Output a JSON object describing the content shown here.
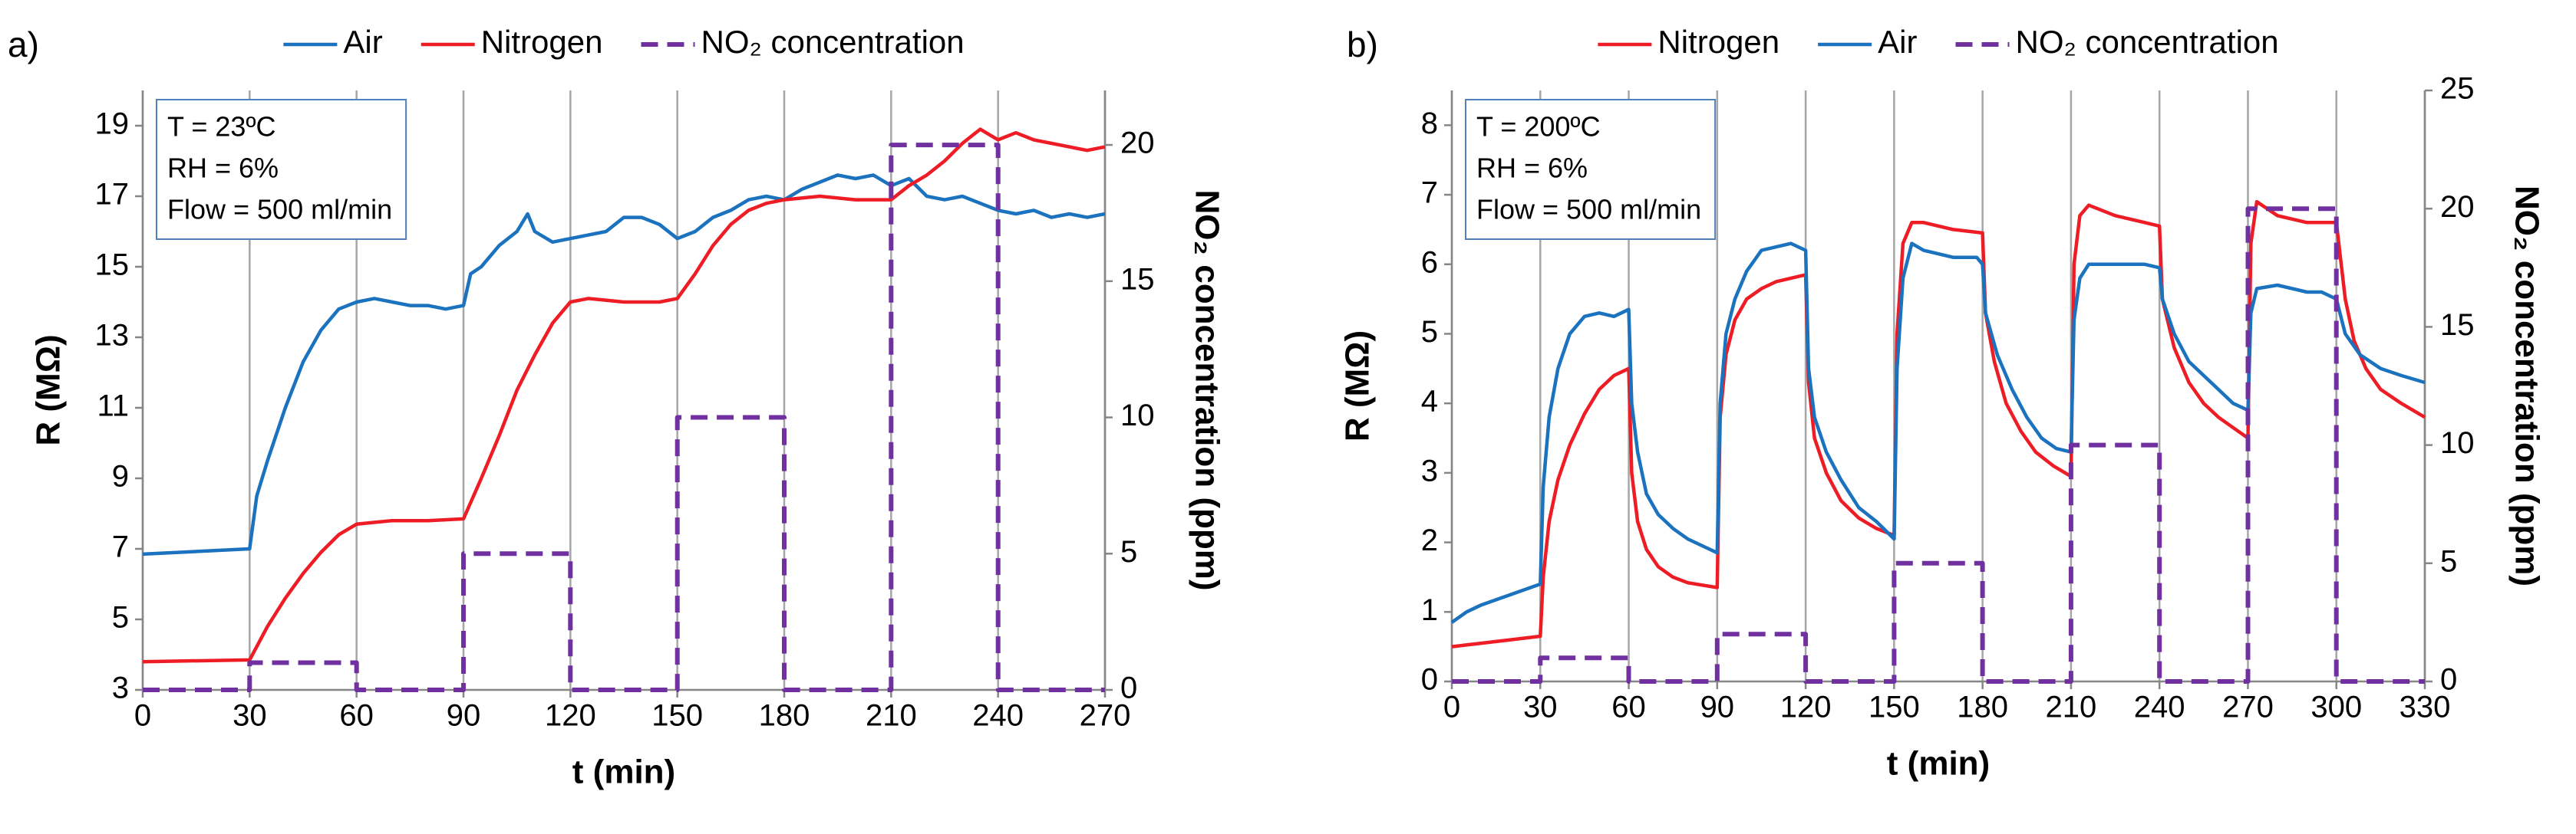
{
  "chart_data": [
    {
      "type": "line",
      "panel_label": "a)",
      "xlabel": "t (min)",
      "ylabel": "R (MΩ)",
      "y2label": "NO₂ concentration (ppm)",
      "annotation": [
        "T = 23ºC",
        "RH = 6%",
        "Flow = 500 ml/min"
      ],
      "xlim": [
        0,
        270
      ],
      "xticks": [
        0,
        30,
        60,
        90,
        120,
        150,
        180,
        210,
        240,
        270
      ],
      "ylim": [
        3,
        20
      ],
      "yticks": [
        3,
        5,
        7,
        9,
        11,
        13,
        15,
        17,
        19
      ],
      "y2lim": [
        0,
        22
      ],
      "y2ticks": [
        0,
        5,
        10,
        15,
        20
      ],
      "grid": "x",
      "series": [
        {
          "name": "Air",
          "color": "#1b72be",
          "x": [
            0,
            30,
            32,
            35,
            40,
            45,
            50,
            55,
            60,
            65,
            70,
            75,
            80,
            85,
            90,
            92,
            95,
            100,
            105,
            108,
            110,
            115,
            120,
            125,
            130,
            135,
            140,
            145,
            150,
            155,
            160,
            165,
            170,
            175,
            180,
            185,
            190,
            195,
            200,
            205,
            210,
            215,
            220,
            225,
            230,
            235,
            240,
            245,
            250,
            255,
            260,
            265,
            270
          ],
          "values": [
            6.85,
            7.0,
            8.5,
            9.5,
            11,
            12.3,
            13.2,
            13.8,
            14.0,
            14.1,
            14.0,
            13.9,
            13.9,
            13.8,
            13.9,
            14.8,
            15.0,
            15.6,
            16.0,
            16.5,
            16.0,
            15.7,
            15.8,
            15.9,
            16.0,
            16.4,
            16.4,
            16.2,
            15.8,
            16.0,
            16.4,
            16.6,
            16.9,
            17.0,
            16.9,
            17.2,
            17.4,
            17.6,
            17.5,
            17.6,
            17.3,
            17.5,
            17.0,
            16.9,
            17.0,
            16.8,
            16.6,
            16.5,
            16.6,
            16.4,
            16.5,
            16.4,
            16.5
          ]
        },
        {
          "name": "Nitrogen",
          "color": "#ee1c25",
          "x": [
            0,
            30,
            35,
            40,
            45,
            50,
            55,
            60,
            70,
            80,
            90,
            95,
            100,
            105,
            110,
            115,
            120,
            125,
            135,
            145,
            150,
            155,
            160,
            165,
            170,
            175,
            180,
            190,
            200,
            210,
            215,
            220,
            225,
            230,
            235,
            240,
            245,
            250,
            255,
            260,
            265,
            270
          ],
          "values": [
            3.8,
            3.85,
            4.8,
            5.6,
            6.3,
            6.9,
            7.4,
            7.7,
            7.8,
            7.8,
            7.85,
            9.0,
            10.2,
            11.5,
            12.5,
            13.4,
            14.0,
            14.1,
            14.0,
            14.0,
            14.1,
            14.8,
            15.6,
            16.2,
            16.6,
            16.8,
            16.9,
            17.0,
            16.9,
            16.9,
            17.3,
            17.6,
            18.0,
            18.5,
            18.9,
            18.6,
            18.8,
            18.6,
            18.5,
            18.4,
            18.3,
            18.4
          ]
        },
        {
          "name": "NO₂ concentration",
          "color": "#7030a0",
          "axis": "y2",
          "dashed": true,
          "x": [
            0,
            30,
            30,
            60,
            60,
            90,
            90,
            120,
            120,
            150,
            150,
            180,
            180,
            210,
            210,
            240,
            240,
            270
          ],
          "values": [
            0,
            0,
            1,
            1,
            0,
            0,
            5,
            5,
            0,
            0,
            10,
            10,
            0,
            0,
            20,
            20,
            0,
            0
          ]
        }
      ]
    },
    {
      "type": "line",
      "panel_label": "b)",
      "xlabel": "t (min)",
      "ylabel": "R (MΩ)",
      "y2label": "NO₂ concentration (ppm)",
      "annotation": [
        "T = 200ºC",
        "RH = 6%",
        "Flow = 500 ml/min"
      ],
      "xlim": [
        0,
        330
      ],
      "xticks": [
        0,
        30,
        60,
        90,
        120,
        150,
        180,
        210,
        240,
        270,
        300,
        330
      ],
      "ylim": [
        0,
        8.5
      ],
      "yticks": [
        0,
        1,
        2,
        3,
        4,
        5,
        6,
        7,
        8
      ],
      "y2lim": [
        0,
        25
      ],
      "y2ticks": [
        0,
        5,
        10,
        15,
        20,
        25
      ],
      "grid": "x",
      "series": [
        {
          "name": "Nitrogen",
          "color": "#ee1c25",
          "x": [
            0,
            10,
            20,
            30,
            31,
            33,
            36,
            40,
            45,
            50,
            55,
            60,
            61,
            63,
            66,
            70,
            75,
            80,
            90,
            91,
            93,
            96,
            100,
            105,
            110,
            115,
            120,
            121,
            123,
            127,
            132,
            138,
            144,
            150,
            151,
            153,
            156,
            160,
            170,
            180,
            181,
            184,
            188,
            193,
            198,
            204,
            210,
            211,
            213,
            216,
            225,
            235,
            240,
            241,
            245,
            250,
            255,
            260,
            265,
            270,
            271,
            273,
            280,
            290,
            300,
            303,
            306,
            310,
            315,
            322,
            330
          ],
          "values": [
            0.5,
            0.55,
            0.6,
            0.65,
            1.5,
            2.3,
            2.9,
            3.4,
            3.85,
            4.2,
            4.4,
            4.5,
            3.0,
            2.3,
            1.9,
            1.65,
            1.5,
            1.42,
            1.35,
            3.8,
            4.7,
            5.2,
            5.5,
            5.65,
            5.75,
            5.8,
            5.85,
            4.3,
            3.5,
            3.0,
            2.6,
            2.35,
            2.2,
            2.1,
            5.0,
            6.3,
            6.6,
            6.6,
            6.5,
            6.45,
            5.3,
            4.6,
            4.0,
            3.6,
            3.3,
            3.1,
            2.95,
            6.0,
            6.7,
            6.85,
            6.7,
            6.6,
            6.55,
            5.5,
            4.8,
            4.3,
            4.0,
            3.8,
            3.65,
            3.5,
            6.3,
            6.9,
            6.7,
            6.6,
            6.6,
            5.5,
            4.9,
            4.5,
            4.2,
            4.0,
            3.8
          ]
        },
        {
          "name": "Air",
          "color": "#1b72be",
          "x": [
            0,
            5,
            10,
            20,
            30,
            31,
            33,
            36,
            40,
            45,
            50,
            55,
            60,
            61,
            63,
            66,
            70,
            75,
            80,
            85,
            90,
            91,
            93,
            96,
            100,
            105,
            110,
            115,
            120,
            121,
            123,
            127,
            132,
            138,
            144,
            150,
            151,
            153,
            156,
            160,
            170,
            178,
            180,
            181,
            185,
            190,
            195,
            200,
            205,
            210,
            211,
            213,
            216,
            225,
            235,
            240,
            241,
            245,
            250,
            255,
            260,
            265,
            270,
            271,
            273,
            280,
            290,
            295,
            300,
            303,
            308,
            315,
            322,
            330
          ],
          "values": [
            0.85,
            1.0,
            1.1,
            1.25,
            1.4,
            2.8,
            3.8,
            4.5,
            5.0,
            5.25,
            5.3,
            5.25,
            5.35,
            4.0,
            3.3,
            2.7,
            2.4,
            2.2,
            2.05,
            1.95,
            1.85,
            4.0,
            5.0,
            5.5,
            5.9,
            6.2,
            6.25,
            6.3,
            6.2,
            4.5,
            3.8,
            3.3,
            2.9,
            2.5,
            2.3,
            2.05,
            4.5,
            5.8,
            6.3,
            6.2,
            6.1,
            6.1,
            6.0,
            5.3,
            4.7,
            4.2,
            3.8,
            3.5,
            3.35,
            3.3,
            5.2,
            5.8,
            6.0,
            6.0,
            6.0,
            5.95,
            5.5,
            5.0,
            4.6,
            4.4,
            4.2,
            4.0,
            3.9,
            5.3,
            5.65,
            5.7,
            5.6,
            5.6,
            5.5,
            5.0,
            4.7,
            4.5,
            4.4,
            4.3
          ]
        },
        {
          "name": "NO₂ concentration",
          "color": "#7030a0",
          "axis": "y2",
          "dashed": true,
          "x": [
            0,
            30,
            30,
            60,
            60,
            90,
            90,
            120,
            120,
            150,
            150,
            180,
            180,
            210,
            210,
            240,
            240,
            270,
            270,
            300,
            300,
            330
          ],
          "values": [
            0,
            0,
            1,
            1,
            0,
            0,
            2,
            2,
            0,
            0,
            5,
            5,
            0,
            0,
            10,
            10,
            0,
            0,
            20,
            20,
            0,
            0
          ]
        }
      ]
    }
  ]
}
